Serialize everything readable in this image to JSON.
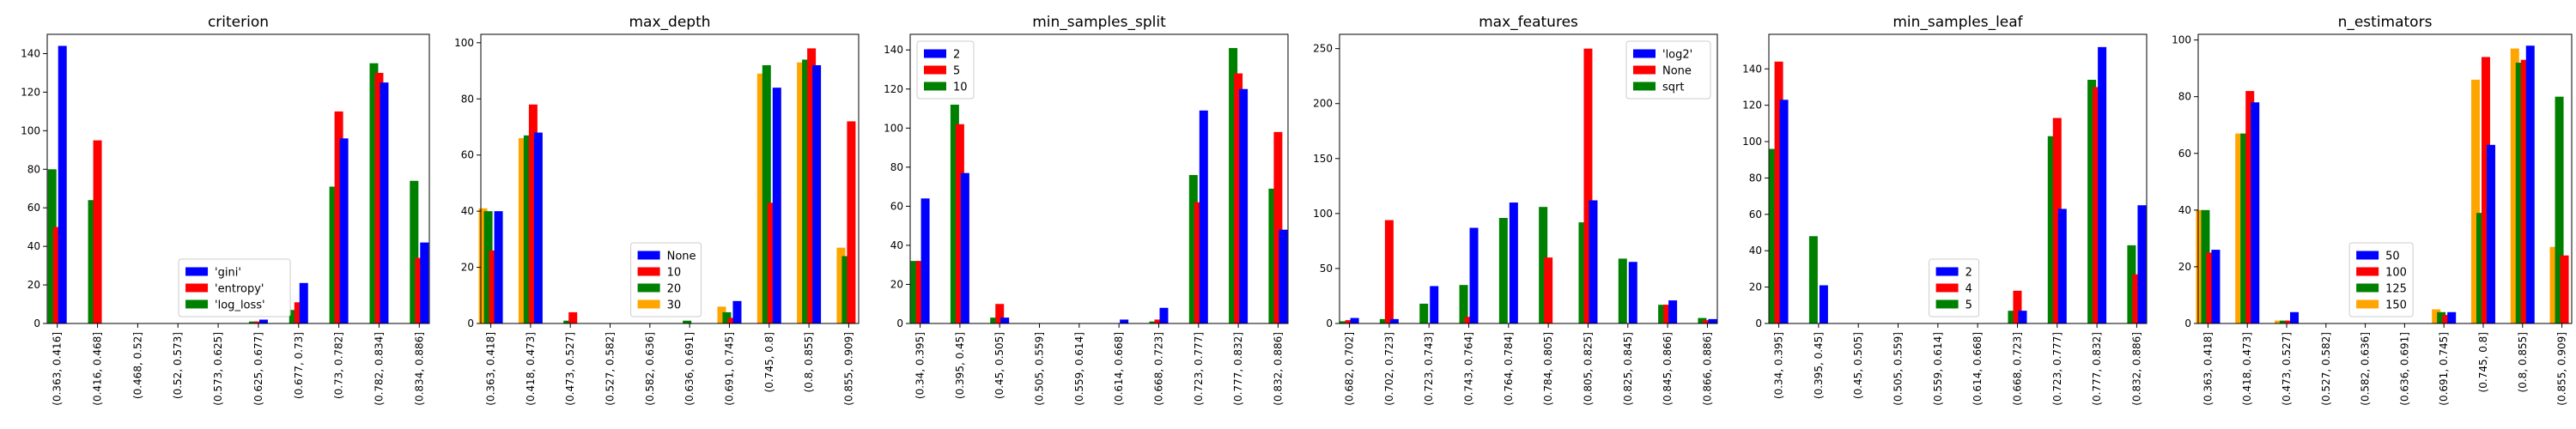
{
  "colors": {
    "blue": "#0000ff",
    "red": "#ff0000",
    "green": "#008000",
    "orange": "#ffa500"
  },
  "chart_data": [
    {
      "type": "bar",
      "title": "criterion",
      "xlabel": "",
      "ylabel": "",
      "ylim": [
        0,
        150
      ],
      "yticks": [
        0,
        20,
        40,
        60,
        80,
        100,
        120,
        140
      ],
      "legend": "bottom-center",
      "categories": [
        "(0.363, 0.416]",
        "(0.416, 0.468]",
        "(0.468, 0.52]",
        "(0.52, 0.573]",
        "(0.573, 0.625]",
        "(0.625, 0.677]",
        "(0.677, 0.73]",
        "(0.73, 0.782]",
        "(0.782, 0.834]",
        "(0.834, 0.886]"
      ],
      "series": [
        {
          "name": "'gini'",
          "color": "#0000ff",
          "values": [
            144,
            0,
            0,
            0,
            0,
            2,
            21,
            96,
            125,
            42
          ]
        },
        {
          "name": "'entropy'",
          "color": "#ff0000",
          "values": [
            50,
            95,
            0,
            0,
            0,
            1,
            11,
            110,
            130,
            34
          ]
        },
        {
          "name": "'log_loss'",
          "color": "#008000",
          "values": [
            80,
            64,
            0,
            0,
            0,
            1,
            7,
            71,
            135,
            74
          ]
        }
      ],
      "plot_order": [
        2,
        1,
        0
      ]
    },
    {
      "type": "bar",
      "title": "max_depth",
      "xlabel": "",
      "ylabel": "",
      "ylim": [
        0,
        103
      ],
      "yticks": [
        0,
        20,
        40,
        60,
        80,
        100
      ],
      "legend": "bottom-center",
      "categories": [
        "(0.363, 0.418]",
        "(0.418, 0.473]",
        "(0.473, 0.527]",
        "(0.527, 0.582]",
        "(0.582, 0.636]",
        "(0.636, 0.691]",
        "(0.691, 0.745]",
        "(0.745, 0.8]",
        "(0.8, 0.855]",
        "(0.855, 0.909]"
      ],
      "series": [
        {
          "name": "None",
          "color": "#0000ff",
          "values": [
            40,
            68,
            0,
            0,
            0,
            0,
            8,
            84,
            92,
            0
          ]
        },
        {
          "name": "10",
          "color": "#ff0000",
          "values": [
            26,
            78,
            4,
            0,
            0,
            0,
            2,
            43,
            98,
            72
          ]
        },
        {
          "name": "20",
          "color": "#008000",
          "values": [
            40,
            67,
            1,
            0,
            0,
            1,
            4,
            92,
            94,
            24
          ]
        },
        {
          "name": "30",
          "color": "#ffa500",
          "values": [
            41,
            66,
            0,
            0,
            0,
            0,
            6,
            89,
            93,
            27
          ]
        }
      ],
      "plot_order": [
        3,
        2,
        1,
        0
      ]
    },
    {
      "type": "bar",
      "title": "min_samples_split",
      "xlabel": "",
      "ylabel": "",
      "ylim": [
        0,
        148
      ],
      "yticks": [
        0,
        20,
        40,
        60,
        80,
        100,
        120,
        140
      ],
      "legend": "top-left",
      "categories": [
        "(0.34, 0.395]",
        "(0.395, 0.45]",
        "(0.45, 0.505]",
        "(0.505, 0.559]",
        "(0.559, 0.614]",
        "(0.614, 0.668]",
        "(0.668, 0.723]",
        "(0.723, 0.777]",
        "(0.777, 0.832]",
        "(0.832, 0.886]"
      ],
      "series": [
        {
          "name": "2",
          "color": "#0000ff",
          "values": [
            64,
            77,
            3,
            0,
            0,
            2,
            8,
            109,
            120,
            48
          ]
        },
        {
          "name": "5",
          "color": "#ff0000",
          "values": [
            32,
            102,
            10,
            0,
            0,
            0,
            2,
            62,
            128,
            98
          ]
        },
        {
          "name": "10",
          "color": "#008000",
          "values": [
            32,
            112,
            3,
            0,
            0,
            0,
            1,
            76,
            141,
            69
          ]
        }
      ],
      "plot_order": [
        2,
        1,
        0
      ]
    },
    {
      "type": "bar",
      "title": "max_features",
      "xlabel": "",
      "ylabel": "",
      "ylim": [
        0,
        263
      ],
      "yticks": [
        0,
        50,
        100,
        150,
        200,
        250
      ],
      "legend": "top-right",
      "categories": [
        "(0.682, 0.702]",
        "(0.702, 0.723]",
        "(0.723, 0.743]",
        "(0.743, 0.764]",
        "(0.764, 0.784]",
        "(0.784, 0.805]",
        "(0.805, 0.825]",
        "(0.825, 0.845]",
        "(0.845, 0.866]",
        "(0.866, 0.886]"
      ],
      "series": [
        {
          "name": "'log2'",
          "color": "#0000ff",
          "values": [
            5,
            4,
            34,
            87,
            110,
            0,
            112,
            56,
            21,
            4
          ]
        },
        {
          "name": "None",
          "color": "#ff0000",
          "values": [
            3,
            94,
            0,
            6,
            0,
            60,
            250,
            0,
            17,
            3
          ]
        },
        {
          "name": "sqrt",
          "color": "#008000",
          "values": [
            2,
            4,
            18,
            35,
            96,
            106,
            92,
            59,
            17,
            5
          ]
        }
      ],
      "plot_order": [
        2,
        1,
        0
      ]
    },
    {
      "type": "bar",
      "title": "min_samples_leaf",
      "xlabel": "",
      "ylabel": "",
      "ylim": [
        0,
        159
      ],
      "yticks": [
        0,
        20,
        40,
        60,
        80,
        100,
        120,
        140
      ],
      "legend": "bottom-center",
      "categories": [
        "(0.34, 0.395]",
        "(0.395, 0.45]",
        "(0.45, 0.505]",
        "(0.505, 0.559]",
        "(0.559, 0.614]",
        "(0.614, 0.668]",
        "(0.668, 0.723]",
        "(0.723, 0.777]",
        "(0.777, 0.832]",
        "(0.832, 0.886]"
      ],
      "series": [
        {
          "name": "2",
          "color": "#0000ff",
          "values": [
            123,
            21,
            0,
            0,
            0,
            0,
            7,
            63,
            152,
            65
          ]
        },
        {
          "name": "4",
          "color": "#ff0000",
          "values": [
            144,
            0,
            0,
            0,
            0,
            0,
            18,
            113,
            130,
            27
          ]
        },
        {
          "name": "5",
          "color": "#008000",
          "values": [
            96,
            48,
            0,
            0,
            0,
            0,
            7,
            103,
            134,
            43
          ]
        }
      ],
      "plot_order": [
        2,
        1,
        0
      ]
    },
    {
      "type": "bar",
      "title": "n_estimators",
      "xlabel": "",
      "ylabel": "",
      "ylim": [
        0,
        102
      ],
      "yticks": [
        0,
        20,
        40,
        60,
        80,
        100
      ],
      "legend": "bottom-center",
      "categories": [
        "(0.363, 0.418]",
        "(0.418, 0.473]",
        "(0.473, 0.527]",
        "(0.527, 0.582]",
        "(0.582, 0.636]",
        "(0.636, 0.691]",
        "(0.691, 0.745]",
        "(0.745, 0.8]",
        "(0.8, 0.855]",
        "(0.855, 0.909]"
      ],
      "series": [
        {
          "name": "50",
          "color": "#0000ff",
          "values": [
            26,
            78,
            4,
            0,
            0,
            0,
            4,
            63,
            98,
            0
          ]
        },
        {
          "name": "100",
          "color": "#ff0000",
          "values": [
            25,
            82,
            1,
            0,
            0,
            0,
            3,
            94,
            93,
            24
          ]
        },
        {
          "name": "125",
          "color": "#008000",
          "values": [
            40,
            67,
            1,
            0,
            0,
            0,
            4,
            39,
            92,
            80
          ]
        },
        {
          "name": "150",
          "color": "#ffa500",
          "values": [
            40,
            67,
            1,
            0,
            0,
            0,
            5,
            86,
            97,
            27
          ]
        }
      ],
      "plot_order": [
        3,
        2,
        1,
        0
      ]
    }
  ]
}
